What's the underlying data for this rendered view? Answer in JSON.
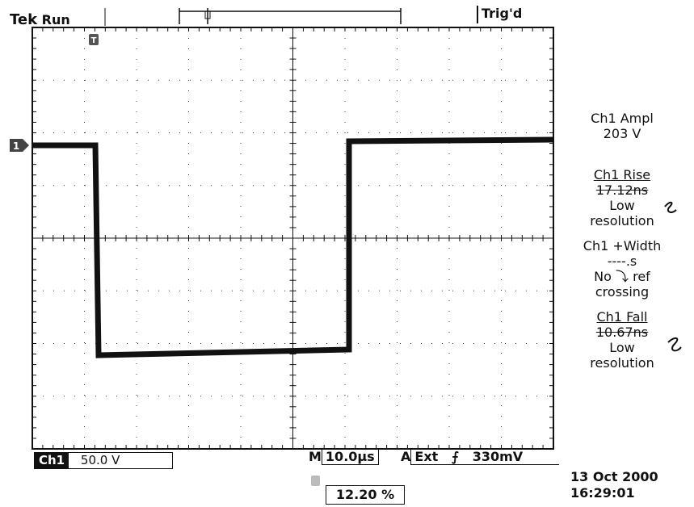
{
  "header": {
    "brand": "Tek",
    "acquisition_state": "Run",
    "trigger_status": "Trig'd"
  },
  "display": {
    "channel_marker": "1",
    "trigger_marker": "T",
    "trace_color": "#111111",
    "grid_color": "#333333"
  },
  "measurements": {
    "ampl": {
      "label": "Ch1 Ampl",
      "value": "203 V"
    },
    "rise": {
      "label": "Ch1 Rise",
      "value": "17.12ns",
      "note": "Low resolution"
    },
    "width": {
      "label": "Ch1 +Width",
      "value": "----.s",
      "note": "No ⤵ ref crossing"
    },
    "fall": {
      "label": "Ch1 Fall",
      "value": "10.67ns",
      "note": "Low resolution"
    }
  },
  "footer": {
    "ch1_tag": "Ch1",
    "ch1_scale": "50.0 V",
    "timebase_prefix": "M",
    "timebase": "10.0µs",
    "trigger_prefix": "A",
    "trigger_source": "Ext",
    "trigger_slope": "⨍",
    "trigger_level": "330mV",
    "position_percent": "12.20 %",
    "date": "13 Oct  2000",
    "time": "16:29:01"
  }
}
